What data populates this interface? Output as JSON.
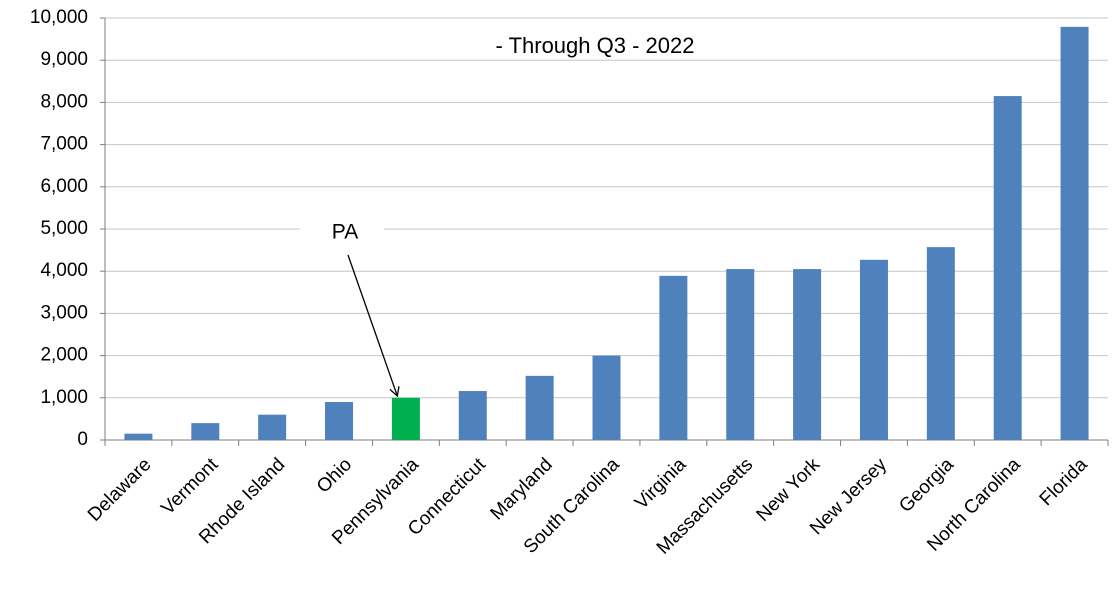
{
  "chart_data": {
    "type": "bar",
    "title": "- Through Q3 - 2022",
    "annotation": "PA",
    "categories": [
      "Delaware",
      "Vermont",
      "Rhode Island",
      "Ohio",
      "Pennsylvania",
      "Connecticut",
      "Maryland",
      "South Carolina",
      "Virginia",
      "Massachusetts",
      "New York",
      "New Jersey",
      "Georgia",
      "North Carolina",
      "Florida"
    ],
    "values": [
      150,
      400,
      600,
      900,
      1000,
      1160,
      1520,
      2000,
      3890,
      4050,
      4050,
      4270,
      4570,
      8150,
      9790
    ],
    "colors": [
      "#4f81bd",
      "#4f81bd",
      "#4f81bd",
      "#4f81bd",
      "#00b050",
      "#4f81bd",
      "#4f81bd",
      "#4f81bd",
      "#4f81bd",
      "#4f81bd",
      "#4f81bd",
      "#4f81bd",
      "#4f81bd",
      "#4f81bd",
      "#4f81bd"
    ],
    "ylim": [
      0,
      10000
    ],
    "yticks": [
      0,
      {
        "value": 1000,
        "label": "1,000"
      },
      {
        "value": 2000,
        "label": "2,000"
      },
      {
        "value": 3000,
        "label": "3,000"
      },
      {
        "value": 4000,
        "label": "4,000"
      },
      {
        "value": 5000,
        "label": "5,000"
      },
      {
        "value": 6000,
        "label": "6,000"
      },
      {
        "value": 7000,
        "label": "7,000"
      },
      {
        "value": 8000,
        "label": "8,000"
      },
      {
        "value": 9000,
        "label": "9,000"
      },
      {
        "value": 10000,
        "label": "10,000"
      }
    ],
    "grid": true
  }
}
